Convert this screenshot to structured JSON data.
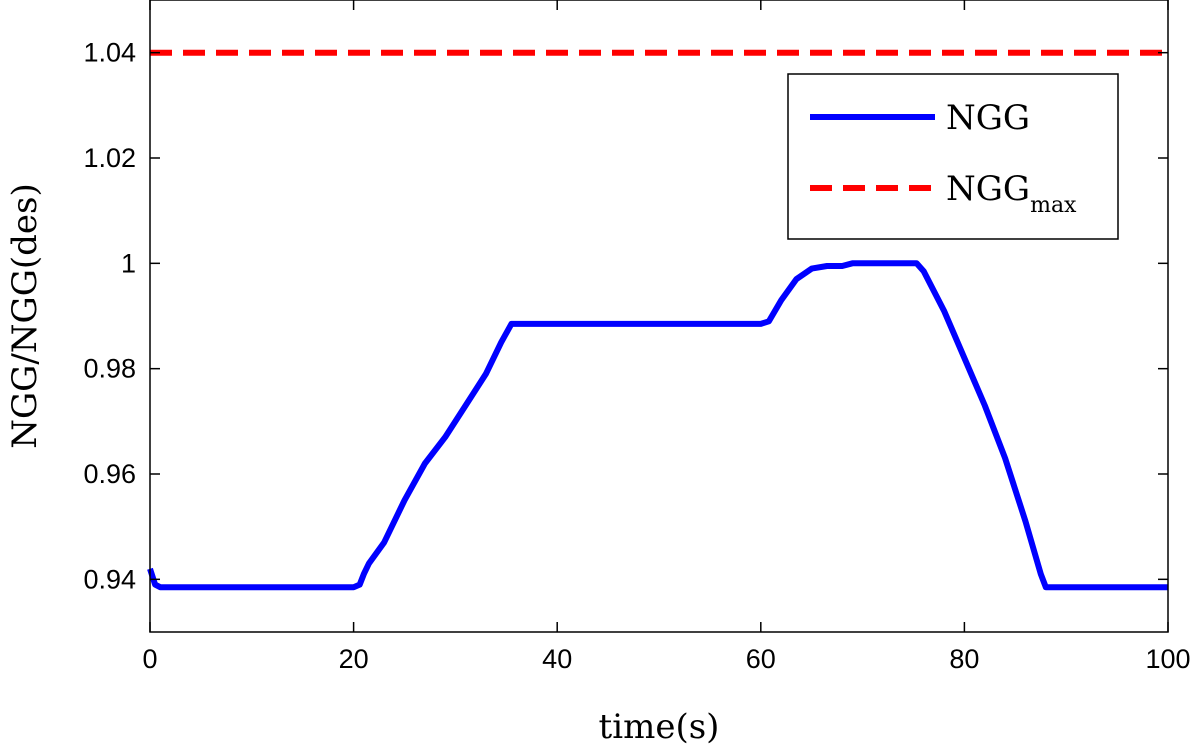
{
  "chart_data": {
    "type": "line",
    "xlabel": "time(s)",
    "ylabel": "NGG/NGG(des)",
    "xlim": [
      0,
      100
    ],
    "ylim": [
      0.93,
      1.05
    ],
    "xticks": [
      0,
      20,
      40,
      60,
      80,
      100
    ],
    "yticks": [
      0.94,
      0.96,
      0.98,
      1,
      1.02,
      1.04
    ],
    "xtick_labels": [
      "0",
      "20",
      "40",
      "60",
      "80",
      "100"
    ],
    "ytick_labels": [
      "0.94",
      "0.96",
      "0.98",
      "1",
      "1.02",
      "1.04"
    ],
    "grid": false,
    "legend_position": "top-right",
    "series": [
      {
        "name": "NGG",
        "color": "#0000ff",
        "style": "solid",
        "x": [
          0,
          0.5,
          1,
          20,
          20.6,
          21,
          21.5,
          23,
          25,
          27,
          29,
          31,
          33,
          34.5,
          35.5,
          60,
          60.8,
          62,
          63.5,
          65,
          66.5,
          68,
          69,
          75.3,
          76,
          78,
          80,
          82,
          84,
          86,
          87.5,
          88,
          100
        ],
        "values": [
          0.942,
          0.939,
          0.9385,
          0.9385,
          0.939,
          0.941,
          0.943,
          0.947,
          0.955,
          0.962,
          0.967,
          0.973,
          0.979,
          0.985,
          0.9885,
          0.9885,
          0.989,
          0.993,
          0.997,
          0.999,
          0.9995,
          0.9995,
          1.0,
          1.0,
          0.9985,
          0.991,
          0.982,
          0.973,
          0.963,
          0.951,
          0.941,
          0.9385,
          0.9385
        ]
      },
      {
        "name": "NGG",
        "name_subscript": "max",
        "color": "#ff0000",
        "style": "dashed",
        "x": [
          0,
          100
        ],
        "values": [
          1.04,
          1.04
        ]
      }
    ]
  }
}
